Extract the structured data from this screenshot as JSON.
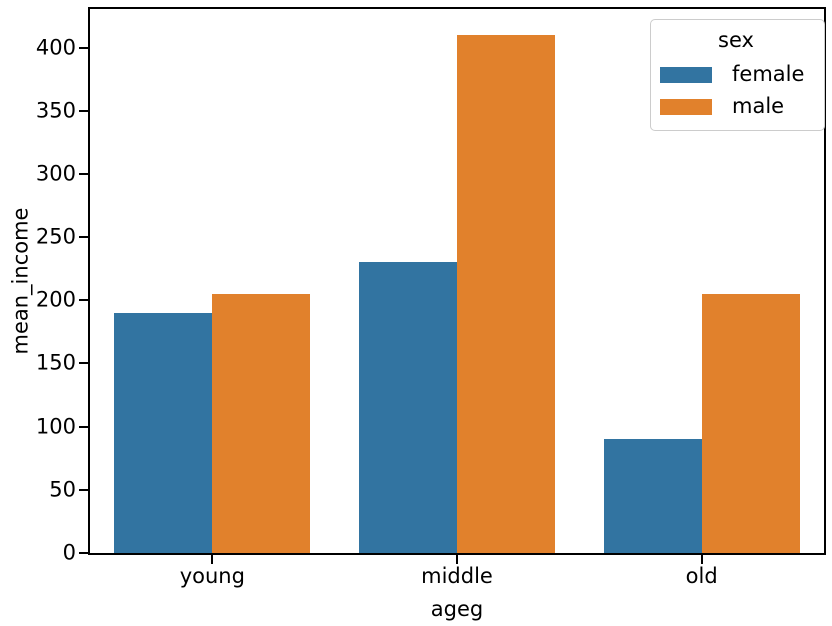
{
  "chart_data": {
    "type": "bar",
    "title": "",
    "xlabel": "ageg",
    "ylabel": "mean_income",
    "categories": [
      "young",
      "middle",
      "old"
    ],
    "series": [
      {
        "name": "female",
        "color": "#3274a1",
        "values": [
          190,
          230,
          90
        ]
      },
      {
        "name": "male",
        "color": "#e1812c",
        "values": [
          205,
          410,
          205
        ]
      }
    ],
    "ylim": [
      0,
      430.5
    ],
    "yticks": [
      0,
      50,
      100,
      150,
      200,
      250,
      300,
      350,
      400
    ],
    "grid": false,
    "bar_group_width": 0.8,
    "legend": {
      "title": "sex",
      "position": "upper right"
    }
  }
}
